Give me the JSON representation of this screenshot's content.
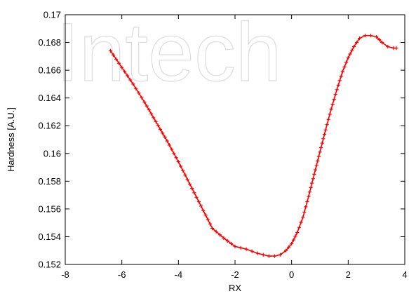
{
  "watermark": "Intech",
  "chart_data": {
    "type": "line",
    "xlabel": "RX",
    "ylabel": "Hardness [A.U.]",
    "xlim": [
      -8,
      4
    ],
    "ylim": [
      0.152,
      0.17
    ],
    "xticks": [
      -8,
      -6,
      -4,
      -2,
      0,
      2,
      4
    ],
    "yticks": [
      0.152,
      0.154,
      0.156,
      0.158,
      0.16,
      0.162,
      0.164,
      0.166,
      0.168,
      0.17
    ],
    "xtick_labels": [
      "-8",
      "-6",
      "-4",
      "-2",
      "0",
      "2",
      "4"
    ],
    "ytick_labels": [
      "0.152",
      "0.154",
      "0.156",
      "0.158",
      "0.16",
      "0.162",
      "0.164",
      "0.166",
      "0.168",
      "0.17"
    ],
    "line_color": "#ff0000",
    "marker": "plus",
    "grid": false,
    "series": [
      {
        "x": [
          -6.4,
          -6.0,
          -5.6,
          -5.2,
          -4.8,
          -4.4,
          -4.0,
          -3.6,
          -3.2,
          -2.8,
          -2.4,
          -2.0,
          -1.6,
          -1.2,
          -1.0,
          -0.8,
          -0.6,
          -0.4,
          -0.2,
          0.0,
          0.2,
          0.4,
          0.6,
          0.8,
          1.0,
          1.2,
          1.4,
          1.6,
          1.8,
          2.0,
          2.2,
          2.4,
          2.6,
          2.8,
          3.0,
          3.2,
          3.4,
          3.6,
          3.7
        ],
        "y": [
          0.1674,
          0.1662,
          0.165,
          0.1637,
          0.1623,
          0.1609,
          0.1594,
          0.1578,
          0.1562,
          0.1546,
          0.1539,
          0.1533,
          0.1531,
          0.1528,
          0.1527,
          0.1526,
          0.1526,
          0.1527,
          0.153,
          0.1535,
          0.1543,
          0.1554,
          0.1569,
          0.1585,
          0.1601,
          0.1617,
          0.1632,
          0.1646,
          0.1659,
          0.1669,
          0.1677,
          0.1683,
          0.1685,
          0.1685,
          0.1684,
          0.168,
          0.1677,
          0.1676,
          0.1676
        ]
      }
    ]
  }
}
